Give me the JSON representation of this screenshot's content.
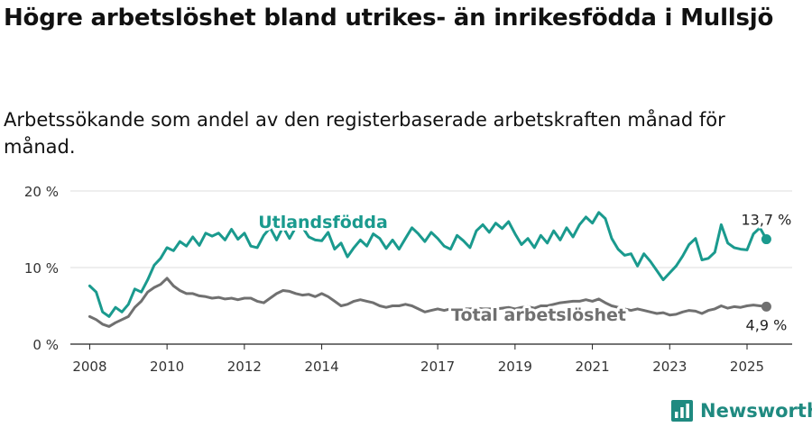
{
  "title": "Högre arbetslöshet bland utrikes- än inrikesfödda i Mullsjö",
  "subtitle": "Arbetssökande som andel av den registerbaserade arbetskraften månad för månad.",
  "brand": {
    "name": "Newsworthy",
    "logo_icon": "bar-chart-logo-icon"
  },
  "chart_data": {
    "type": "line",
    "title": "Högre arbetslöshet bland utrikes- än inrikesfödda i Mullsjö",
    "subtitle": "Arbetssökande som andel av den registerbaserade arbetskraften månad för månad.",
    "xlabel": "",
    "ylabel": "",
    "x_range": [
      "2007-07",
      "2026-03"
    ],
    "ylim": [
      0,
      20
    ],
    "y_ticks": [
      0,
      10,
      20
    ],
    "y_tick_labels": [
      "0 %",
      "10 %",
      "20 %"
    ],
    "x_ticks": [
      "2008-01",
      "2010-01",
      "2012-01",
      "2014-01",
      "2017-01",
      "2019-01",
      "2021-01",
      "2023-01",
      "2025-01"
    ],
    "x_tick_labels": [
      "2008",
      "2010",
      "2012",
      "2014",
      "2017",
      "2019",
      "2021",
      "2023",
      "2025"
    ],
    "grid": "horizontal",
    "series": [
      {
        "name": "Utlandsfödda",
        "color": "#1a9a8e",
        "end_label": "13,7 %",
        "points": [
          [
            "2008-01",
            7.6
          ],
          [
            "2008-03",
            6.8
          ],
          [
            "2008-05",
            4.2
          ],
          [
            "2008-07",
            3.6
          ],
          [
            "2008-09",
            4.8
          ],
          [
            "2008-11",
            4.2
          ],
          [
            "2009-01",
            5.2
          ],
          [
            "2009-03",
            7.2
          ],
          [
            "2009-05",
            6.8
          ],
          [
            "2009-07",
            8.4
          ],
          [
            "2009-09",
            10.3
          ],
          [
            "2009-11",
            11.2
          ],
          [
            "2010-01",
            12.6
          ],
          [
            "2010-03",
            12.2
          ],
          [
            "2010-05",
            13.4
          ],
          [
            "2010-07",
            12.8
          ],
          [
            "2010-09",
            14.0
          ],
          [
            "2010-11",
            12.9
          ],
          [
            "2011-01",
            14.5
          ],
          [
            "2011-03",
            14.1
          ],
          [
            "2011-05",
            14.5
          ],
          [
            "2011-07",
            13.6
          ],
          [
            "2011-09",
            15.0
          ],
          [
            "2011-11",
            13.7
          ],
          [
            "2012-01",
            14.5
          ],
          [
            "2012-03",
            12.8
          ],
          [
            "2012-05",
            12.6
          ],
          [
            "2012-07",
            14.2
          ],
          [
            "2012-09",
            15.2
          ],
          [
            "2012-11",
            13.6
          ],
          [
            "2013-01",
            15.3
          ],
          [
            "2013-03",
            13.8
          ],
          [
            "2013-05",
            15.3
          ],
          [
            "2013-07",
            15.3
          ],
          [
            "2013-09",
            14.0
          ],
          [
            "2013-11",
            13.6
          ],
          [
            "2014-01",
            13.5
          ],
          [
            "2014-03",
            14.6
          ],
          [
            "2014-05",
            12.4
          ],
          [
            "2014-07",
            13.2
          ],
          [
            "2014-09",
            11.4
          ],
          [
            "2014-11",
            12.6
          ],
          [
            "2015-01",
            13.6
          ],
          [
            "2015-03",
            12.8
          ],
          [
            "2015-05",
            14.4
          ],
          [
            "2015-07",
            13.8
          ],
          [
            "2015-09",
            12.5
          ],
          [
            "2015-11",
            13.6
          ],
          [
            "2016-01",
            12.4
          ],
          [
            "2016-03",
            13.8
          ],
          [
            "2016-05",
            15.2
          ],
          [
            "2016-07",
            14.4
          ],
          [
            "2016-09",
            13.4
          ],
          [
            "2016-11",
            14.6
          ],
          [
            "2017-01",
            13.8
          ],
          [
            "2017-03",
            12.8
          ],
          [
            "2017-05",
            12.4
          ],
          [
            "2017-07",
            14.2
          ],
          [
            "2017-09",
            13.5
          ],
          [
            "2017-11",
            12.6
          ],
          [
            "2018-01",
            14.8
          ],
          [
            "2018-03",
            15.6
          ],
          [
            "2018-05",
            14.6
          ],
          [
            "2018-07",
            15.8
          ],
          [
            "2018-09",
            15.1
          ],
          [
            "2018-11",
            16.0
          ],
          [
            "2019-01",
            14.4
          ],
          [
            "2019-03",
            13.0
          ],
          [
            "2019-05",
            13.8
          ],
          [
            "2019-07",
            12.6
          ],
          [
            "2019-09",
            14.2
          ],
          [
            "2019-11",
            13.2
          ],
          [
            "2020-01",
            14.8
          ],
          [
            "2020-03",
            13.6
          ],
          [
            "2020-05",
            15.2
          ],
          [
            "2020-07",
            14.0
          ],
          [
            "2020-09",
            15.6
          ],
          [
            "2020-11",
            16.6
          ],
          [
            "2021-01",
            15.8
          ],
          [
            "2021-03",
            17.2
          ],
          [
            "2021-05",
            16.4
          ],
          [
            "2021-07",
            13.8
          ],
          [
            "2021-09",
            12.4
          ],
          [
            "2021-11",
            11.6
          ],
          [
            "2022-01",
            11.8
          ],
          [
            "2022-03",
            10.2
          ],
          [
            "2022-05",
            11.8
          ],
          [
            "2022-07",
            10.8
          ],
          [
            "2022-09",
            9.6
          ],
          [
            "2022-11",
            8.4
          ],
          [
            "2023-01",
            9.3
          ],
          [
            "2023-03",
            10.2
          ],
          [
            "2023-05",
            11.5
          ],
          [
            "2023-07",
            13.0
          ],
          [
            "2023-09",
            13.8
          ],
          [
            "2023-11",
            11.0
          ],
          [
            "2024-01",
            11.2
          ],
          [
            "2024-03",
            12.0
          ],
          [
            "2024-05",
            15.6
          ],
          [
            "2024-07",
            13.2
          ],
          [
            "2024-09",
            12.6
          ],
          [
            "2024-11",
            12.4
          ],
          [
            "2025-01",
            12.3
          ],
          [
            "2025-03",
            14.4
          ],
          [
            "2025-05",
            15.2
          ],
          [
            "2025-07",
            13.7
          ]
        ]
      },
      {
        "name": "Total arbetslöshet",
        "color": "#707070",
        "end_label": "4,9 %",
        "points": [
          [
            "2008-01",
            3.6
          ],
          [
            "2008-03",
            3.2
          ],
          [
            "2008-05",
            2.6
          ],
          [
            "2008-07",
            2.3
          ],
          [
            "2008-09",
            2.8
          ],
          [
            "2008-11",
            3.2
          ],
          [
            "2009-01",
            3.6
          ],
          [
            "2009-03",
            4.8
          ],
          [
            "2009-05",
            5.6
          ],
          [
            "2009-07",
            6.8
          ],
          [
            "2009-09",
            7.4
          ],
          [
            "2009-11",
            7.8
          ],
          [
            "2010-01",
            8.6
          ],
          [
            "2010-03",
            7.6
          ],
          [
            "2010-05",
            7.0
          ],
          [
            "2010-07",
            6.6
          ],
          [
            "2010-09",
            6.6
          ],
          [
            "2010-11",
            6.3
          ],
          [
            "2011-01",
            6.2
          ],
          [
            "2011-03",
            6.0
          ],
          [
            "2011-05",
            6.1
          ],
          [
            "2011-07",
            5.9
          ],
          [
            "2011-09",
            6.0
          ],
          [
            "2011-11",
            5.8
          ],
          [
            "2012-01",
            6.0
          ],
          [
            "2012-03",
            6.0
          ],
          [
            "2012-05",
            5.6
          ],
          [
            "2012-07",
            5.4
          ],
          [
            "2012-09",
            6.0
          ],
          [
            "2012-11",
            6.6
          ],
          [
            "2013-01",
            7.0
          ],
          [
            "2013-03",
            6.9
          ],
          [
            "2013-05",
            6.6
          ],
          [
            "2013-07",
            6.4
          ],
          [
            "2013-09",
            6.5
          ],
          [
            "2013-11",
            6.2
          ],
          [
            "2014-01",
            6.6
          ],
          [
            "2014-03",
            6.2
          ],
          [
            "2014-05",
            5.6
          ],
          [
            "2014-07",
            5.0
          ],
          [
            "2014-09",
            5.2
          ],
          [
            "2014-11",
            5.6
          ],
          [
            "2015-01",
            5.8
          ],
          [
            "2015-03",
            5.6
          ],
          [
            "2015-05",
            5.4
          ],
          [
            "2015-07",
            5.0
          ],
          [
            "2015-09",
            4.8
          ],
          [
            "2015-11",
            5.0
          ],
          [
            "2016-01",
            5.0
          ],
          [
            "2016-03",
            5.2
          ],
          [
            "2016-05",
            5.0
          ],
          [
            "2016-07",
            4.6
          ],
          [
            "2016-09",
            4.2
          ],
          [
            "2016-11",
            4.4
          ],
          [
            "2017-01",
            4.6
          ],
          [
            "2017-03",
            4.4
          ],
          [
            "2017-05",
            4.6
          ],
          [
            "2017-07",
            4.5
          ],
          [
            "2017-09",
            4.6
          ],
          [
            "2017-11",
            4.6
          ],
          [
            "2018-01",
            4.7
          ],
          [
            "2018-03",
            4.6
          ],
          [
            "2018-05",
            4.6
          ],
          [
            "2018-07",
            4.6
          ],
          [
            "2018-09",
            4.7
          ],
          [
            "2018-11",
            4.8
          ],
          [
            "2019-01",
            4.6
          ],
          [
            "2019-03",
            4.8
          ],
          [
            "2019-05",
            4.9
          ],
          [
            "2019-07",
            4.7
          ],
          [
            "2019-09",
            5.0
          ],
          [
            "2019-11",
            5.0
          ],
          [
            "2020-01",
            5.2
          ],
          [
            "2020-03",
            5.4
          ],
          [
            "2020-05",
            5.5
          ],
          [
            "2020-07",
            5.6
          ],
          [
            "2020-09",
            5.6
          ],
          [
            "2020-11",
            5.8
          ],
          [
            "2021-01",
            5.6
          ],
          [
            "2021-03",
            5.9
          ],
          [
            "2021-05",
            5.4
          ],
          [
            "2021-07",
            5.0
          ],
          [
            "2021-09",
            4.8
          ],
          [
            "2021-11",
            4.6
          ],
          [
            "2022-01",
            4.4
          ],
          [
            "2022-03",
            4.6
          ],
          [
            "2022-05",
            4.4
          ],
          [
            "2022-07",
            4.2
          ],
          [
            "2022-09",
            4.0
          ],
          [
            "2022-11",
            4.1
          ],
          [
            "2023-01",
            3.8
          ],
          [
            "2023-03",
            3.9
          ],
          [
            "2023-05",
            4.2
          ],
          [
            "2023-07",
            4.4
          ],
          [
            "2023-09",
            4.3
          ],
          [
            "2023-11",
            4.0
          ],
          [
            "2024-01",
            4.4
          ],
          [
            "2024-03",
            4.6
          ],
          [
            "2024-05",
            5.0
          ],
          [
            "2024-07",
            4.7
          ],
          [
            "2024-09",
            4.9
          ],
          [
            "2024-11",
            4.8
          ],
          [
            "2025-01",
            5.0
          ],
          [
            "2025-03",
            5.1
          ],
          [
            "2025-05",
            5.0
          ],
          [
            "2025-07",
            4.9
          ]
        ]
      }
    ]
  }
}
